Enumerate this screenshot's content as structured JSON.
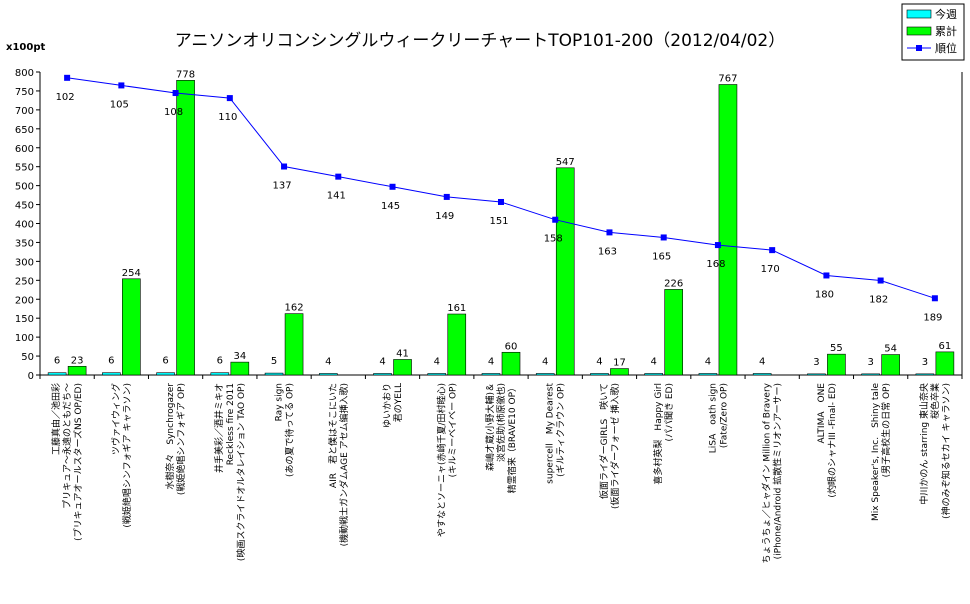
{
  "chart_data": {
    "type": "bar",
    "title": "アニソンオリコンシングルウィークリーチャートTOP101-200（2012/04/02）",
    "ylabel": "x100pt",
    "ylim": [
      0,
      800
    ],
    "yticks": [
      0,
      50,
      100,
      150,
      200,
      250,
      300,
      350,
      400,
      450,
      500,
      550,
      600,
      650,
      700,
      750,
      800
    ],
    "grid": false,
    "legend_position": "top-right",
    "categories": [
      [
        "工藤真由／池田彩",
        "プリキュア～永遠のともだち～",
        "(プリキュアオールスターズNS OP/ED)"
      ],
      [
        "ツヴァイウィング",
        "(戦姫絶唱シンフォギア キャラソン)"
      ],
      [
        "水樹奈々　Synchrogazer",
        "(戦姫絶唱シンフォギア OP)"
      ],
      [
        "井手美彩／酒井ミキオ",
        "Reckless fire 2011",
        "(映画スクライドオルタレイション TAO OP)"
      ],
      [
        "Ray sign",
        "(あの夏で待ってる OP)"
      ],
      [
        "AIR　君と僕はそこにいた",
        "(機動戦士ガンダムAGE アセム編挿入歌)"
      ],
      [
        "ゆいかおり",
        "君のYELL"
      ],
      [
        "やすなとソーニャ(赤崎千夏/田村睦心)",
        "(キルミーベイベー OP)"
      ],
      [
        "森嶋才蔵(小野大輔)＆",
        "淡宮佐助(柿原徹也)",
        "精霊宿来（BRAVE10 OP）"
      ],
      [
        "supercell　My Dearest",
        "(ギルティクラウン OP)"
      ],
      [
        "仮面ライダーGIRLS　咲いて",
        "(仮面ライダーフォーゼ 挿入歌)"
      ],
      [
        "喜多村英梨　Happy Girl",
        "(パパ聞き ED)"
      ],
      [
        "LiSA　oath sign",
        "(Fate/Zero OP)"
      ],
      [
        "ちょうちょ／ヒャダイン Million of Bravery",
        "(iPhone/Android 拡散性ミリオンアーサー)"
      ],
      [
        "ALTIMA　ONE",
        "(灼眼のシャナIII -Final- ED)"
      ],
      [
        "Mix Speaker's, Inc.　Shiny tale",
        "(男子高校生の日常 OP)"
      ],
      [
        "中川かのん starring 東山奈央",
        "桜色卒業",
        "(神のみぞ知るセカイ キャラソン)"
      ]
    ],
    "series": [
      {
        "name": "今週",
        "color": "#00ffff",
        "values": [
          6,
          6,
          6,
          6,
          5,
          4,
          4,
          4,
          4,
          4,
          4,
          4,
          4,
          4,
          3,
          3,
          3
        ]
      },
      {
        "name": "累計",
        "color": "#00ff00",
        "values": [
          23,
          254,
          778,
          34,
          162,
          null,
          41,
          161,
          60,
          547,
          17,
          226,
          767,
          null,
          55,
          54,
          61
        ]
      },
      {
        "name": "順位",
        "color": "#0000ff",
        "values": [
          102,
          105,
          108,
          110,
          137,
          141,
          145,
          149,
          151,
          158,
          163,
          165,
          168,
          170,
          180,
          182,
          189
        ]
      }
    ]
  }
}
